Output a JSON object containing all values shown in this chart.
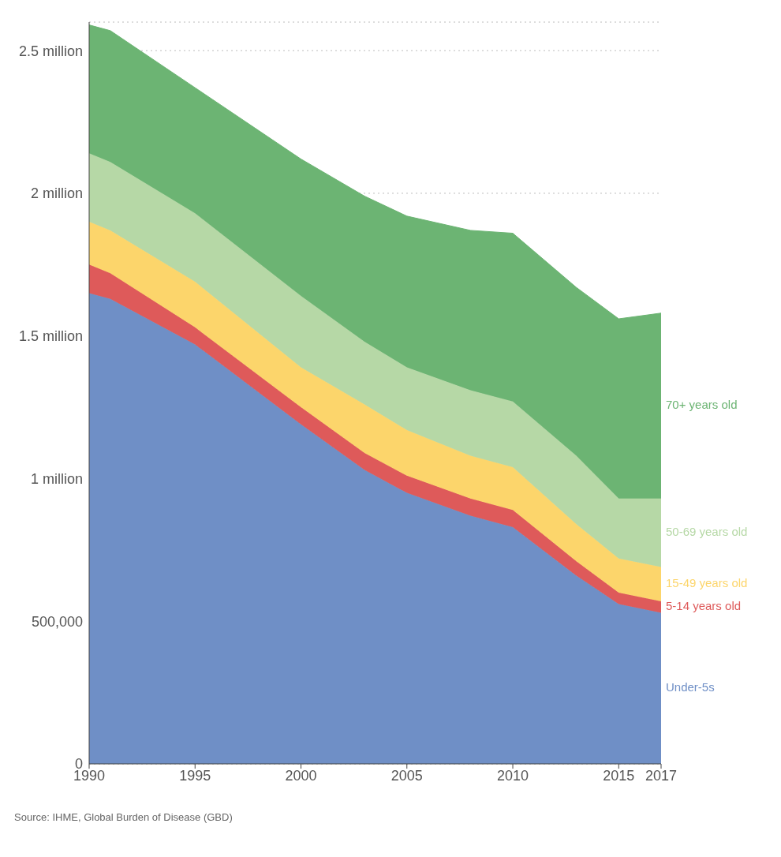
{
  "chart_data": {
    "type": "area",
    "stacked": true,
    "x": [
      1990,
      1991,
      1995,
      2000,
      2003,
      2005,
      2008,
      2010,
      2013,
      2015,
      2017
    ],
    "series": [
      {
        "name": "Under-5s",
        "color": "#6f8fc6",
        "values": [
          1650000,
          1630000,
          1470000,
          1190000,
          1030000,
          950000,
          870000,
          830000,
          660000,
          560000,
          530000
        ]
      },
      {
        "name": "5-14 years old",
        "color": "#de5a5a",
        "values": [
          100000,
          90000,
          60000,
          60000,
          60000,
          60000,
          60000,
          60000,
          50000,
          40000,
          40000
        ]
      },
      {
        "name": "15-49 years old",
        "color": "#fcd56b",
        "values": [
          150000,
          150000,
          160000,
          140000,
          170000,
          160000,
          150000,
          150000,
          130000,
          120000,
          120000
        ]
      },
      {
        "name": "50-69 years old",
        "color": "#b6d8a6",
        "values": [
          240000,
          240000,
          240000,
          250000,
          220000,
          220000,
          230000,
          230000,
          240000,
          210000,
          240000
        ]
      },
      {
        "name": "70+ years old",
        "color": "#6cb473",
        "values": [
          450000,
          460000,
          440000,
          480000,
          510000,
          530000,
          560000,
          590000,
          590000,
          630000,
          650000
        ]
      }
    ],
    "xlim": [
      1990,
      2017
    ],
    "xticks": [
      1990,
      1995,
      2000,
      2005,
      2010,
      2015,
      2017
    ],
    "ylim": [
      0,
      2600000
    ],
    "yticks": [
      0,
      {
        "value": 500000,
        "label": "500,000"
      },
      {
        "value": 1000000,
        "label": "1 million"
      },
      {
        "value": 1500000,
        "label": "1.5 million"
      },
      {
        "value": 2000000,
        "label": "2 million"
      },
      {
        "value": 2500000,
        "label": "2.5 million"
      }
    ],
    "grid": "y",
    "legend": false,
    "annotations": [
      "Source: IHME, Global Burden of Disease (GBD)"
    ]
  }
}
